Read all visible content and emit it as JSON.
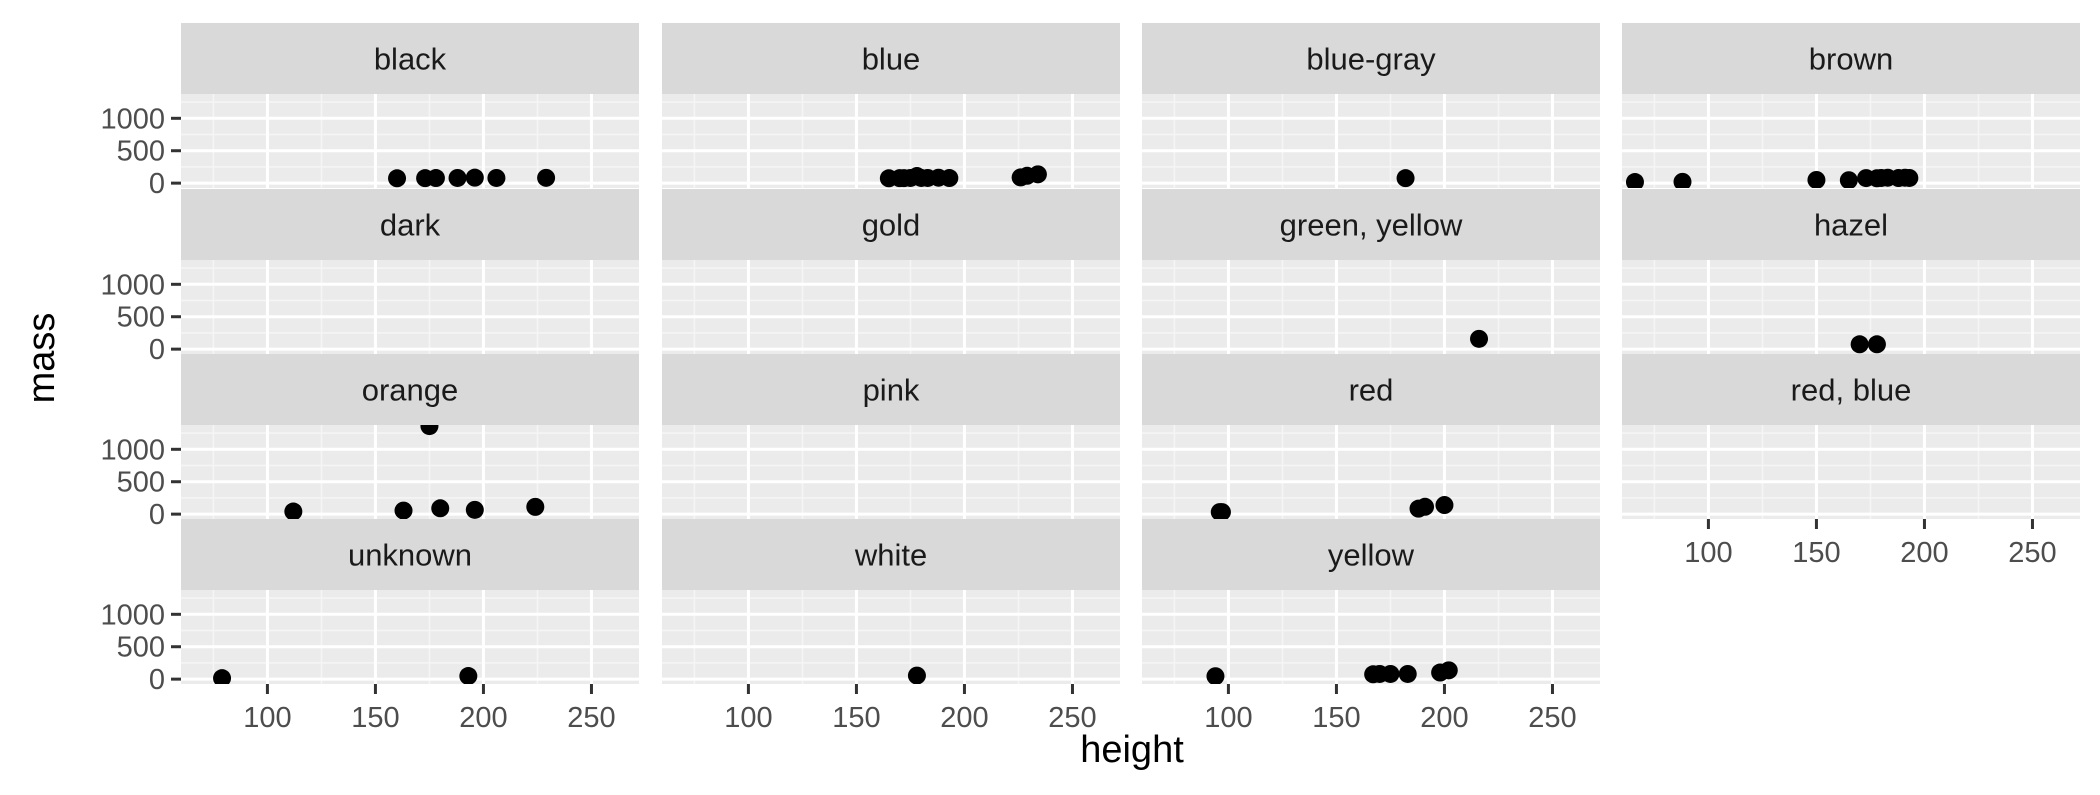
{
  "chart_data": {
    "type": "scatter",
    "layout": "facet_wrap",
    "xlabel": "height",
    "ylabel": "mass",
    "xlim": [
      60,
      272
    ],
    "ylim": [
      -75,
      1375
    ],
    "xticks": [
      100,
      150,
      200,
      250
    ],
    "xtick_labels": [
      "100",
      "150",
      "200",
      "250"
    ],
    "yticks": [
      0,
      500,
      1000
    ],
    "ytick_labels": [
      "0",
      "500",
      "1000"
    ],
    "grid": true,
    "legend": "none",
    "colors": {
      "panel_background": "#ebebeb",
      "strip_background": "#d9d9d9",
      "grid_major": "#ffffff",
      "grid_minor": "#f5f5f5",
      "point": "#000000",
      "axis_text": "#4d4d4d"
    },
    "facets": [
      {
        "label": "black",
        "points": [
          [
            160,
            75
          ],
          [
            173,
            77
          ],
          [
            178,
            79
          ],
          [
            188,
            80
          ],
          [
            196,
            85
          ],
          [
            206,
            80
          ],
          [
            229,
            82
          ]
        ]
      },
      {
        "label": "blue",
        "points": [
          [
            165,
            75
          ],
          [
            170,
            77
          ],
          [
            172,
            77
          ],
          [
            175,
            80
          ],
          [
            178,
            110
          ],
          [
            180,
            80
          ],
          [
            183,
            80
          ],
          [
            188,
            84
          ],
          [
            193,
            79
          ],
          [
            226,
            88
          ],
          [
            229,
            113
          ],
          [
            234,
            136
          ]
        ]
      },
      {
        "label": "blue-gray",
        "points": [
          [
            182,
            77
          ]
        ]
      },
      {
        "label": "brown",
        "points": [
          [
            66,
            17
          ],
          [
            88,
            20
          ],
          [
            150,
            49
          ],
          [
            165,
            45
          ],
          [
            173,
            78
          ],
          [
            178,
            75
          ],
          [
            180,
            80
          ],
          [
            183,
            84
          ],
          [
            188,
            79
          ],
          [
            191,
            84
          ],
          [
            193,
            80
          ]
        ]
      },
      {
        "label": "dark",
        "points": []
      },
      {
        "label": "gold",
        "points": []
      },
      {
        "label": "green, yellow",
        "points": [
          [
            216,
            159
          ]
        ]
      },
      {
        "label": "hazel",
        "points": [
          [
            170,
            75
          ],
          [
            178,
            75
          ]
        ]
      },
      {
        "label": "orange",
        "points": [
          [
            112,
            40
          ],
          [
            163,
            55
          ],
          [
            175,
            1358
          ],
          [
            180,
            90
          ],
          [
            196,
            66
          ],
          [
            224,
            112
          ]
        ]
      },
      {
        "label": "pink",
        "points": []
      },
      {
        "label": "red",
        "points": [
          [
            96,
            32
          ],
          [
            97,
            32
          ],
          [
            188,
            85
          ],
          [
            191,
            113
          ],
          [
            200,
            140
          ]
        ]
      },
      {
        "label": "red, blue",
        "points": []
      },
      {
        "label": "unknown",
        "points": [
          [
            79,
            15
          ],
          [
            193,
            48
          ]
        ]
      },
      {
        "label": "white",
        "points": [
          [
            178,
            55
          ]
        ]
      },
      {
        "label": "yellow",
        "points": [
          [
            94,
            45
          ],
          [
            167,
            75
          ],
          [
            170,
            80
          ],
          [
            175,
            80
          ],
          [
            183,
            80
          ],
          [
            198,
            102
          ],
          [
            202,
            136
          ]
        ]
      }
    ]
  }
}
